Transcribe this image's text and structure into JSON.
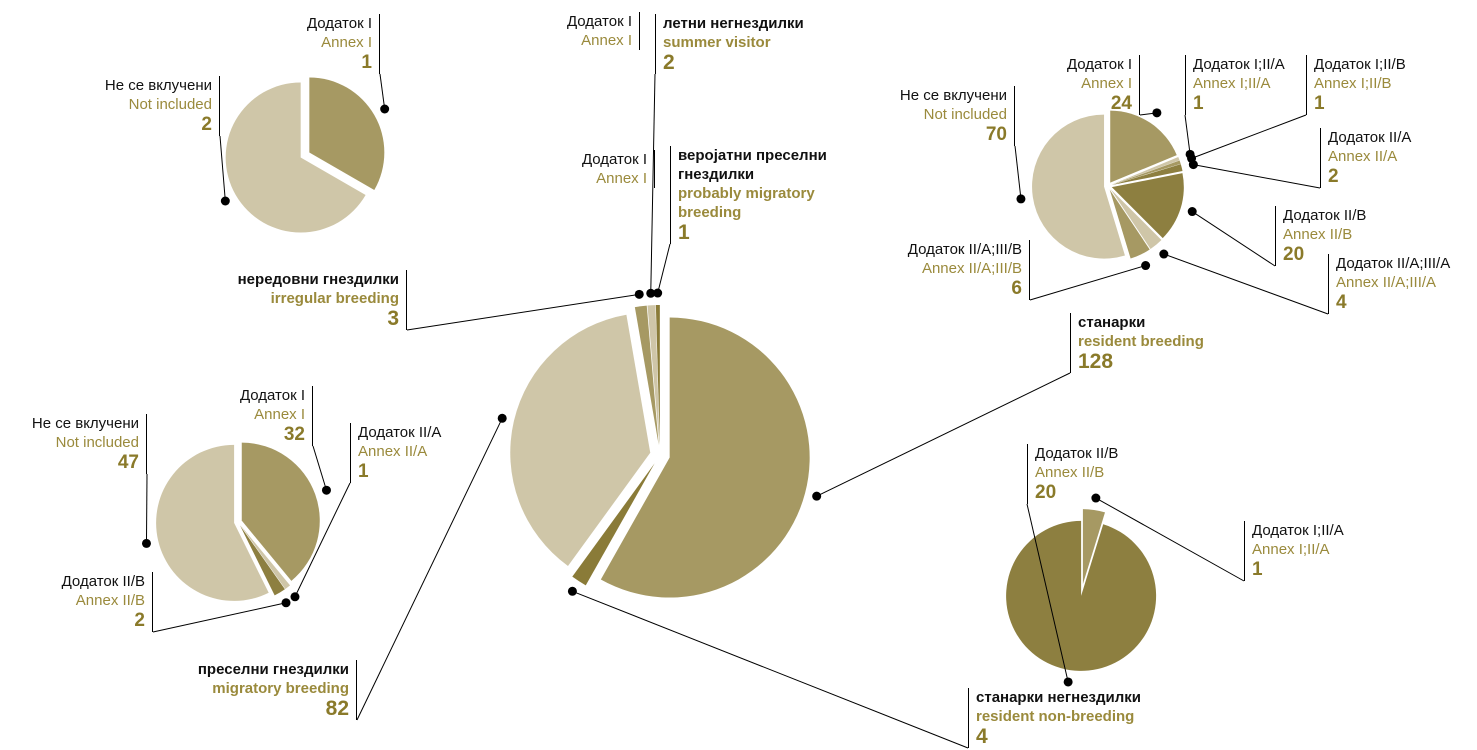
{
  "chart_data": [
    {
      "type": "pie",
      "categories": [
        "станарки",
        "станарки негнездилки",
        "преселни гнездилки",
        "нередовни гнездилки",
        "летни негнездилки",
        "веројатни преселни гнездилки"
      ],
      "categories_en": [
        "resident breeding",
        "resident non-breeding",
        "migratory breeding",
        "irregular breeding",
        "summer visitor",
        "probably migratory breeding"
      ],
      "values": [
        128,
        4,
        82,
        3,
        2,
        1
      ],
      "colors": [
        "#a69963",
        "#8a7b38",
        "#cfc6a8",
        "#a69963",
        "#cfc6a8",
        "#8a7b38"
      ]
    },
    {
      "type": "note",
      "categories": [
        "Додаток I"
      ],
      "categories_en": [
        "Annex I"
      ]
    },
    {
      "type": "note",
      "categories": [
        "Додаток I"
      ],
      "categories_en": [
        "Annex I"
      ]
    },
    {
      "type": "pie",
      "categories": [
        "Додаток I",
        "Додаток I;II/A",
        "Додаток I;II/B",
        "Додаток II/A",
        "Додаток II/B",
        "Додаток II/A;III/A",
        "Додаток II/A;III/B",
        "Не се вклучени"
      ],
      "categories_en": [
        "Annex I",
        "Annex I;II/A",
        "Annex I;II/B",
        "Annex II/A",
        "Annex II/B",
        "Annex II/A;III/A",
        "Annex II/A;III/B",
        "Not included"
      ],
      "values": [
        24,
        1,
        1,
        2,
        20,
        4,
        6,
        70
      ],
      "colors": [
        "#a69963",
        "#cfc6a8",
        "#a69963",
        "#8d7f40",
        "#8d7f40",
        "#cfc6a8",
        "#a69963",
        "#cfc6a8"
      ]
    },
    {
      "type": "pie",
      "categories": [
        "Додаток I",
        "Додаток II/A",
        "Додаток II/B",
        "Не се вклучени"
      ],
      "categories_en": [
        "Annex I",
        "Annex II/A",
        "Annex II/B",
        "Not included"
      ],
      "values": [
        32,
        1,
        2,
        47
      ],
      "colors": [
        "#a69963",
        "#cfc6a8",
        "#8d7f40",
        "#cfc6a8"
      ]
    },
    {
      "type": "pie",
      "categories": [
        "Додаток I",
        "Не се вклучени"
      ],
      "categories_en": [
        "Annex I",
        "Not included"
      ],
      "values": [
        1,
        2
      ],
      "colors": [
        "#a69963",
        "#cfc6a8"
      ]
    },
    {
      "type": "pie",
      "categories": [
        "Додаток II/B",
        "Додаток I;II/A"
      ],
      "categories_en": [
        "Annex II/B",
        "Annex I;II/A"
      ],
      "values": [
        20,
        1
      ],
      "colors": [
        "#8d7f40",
        "#a69963"
      ]
    }
  ]
}
